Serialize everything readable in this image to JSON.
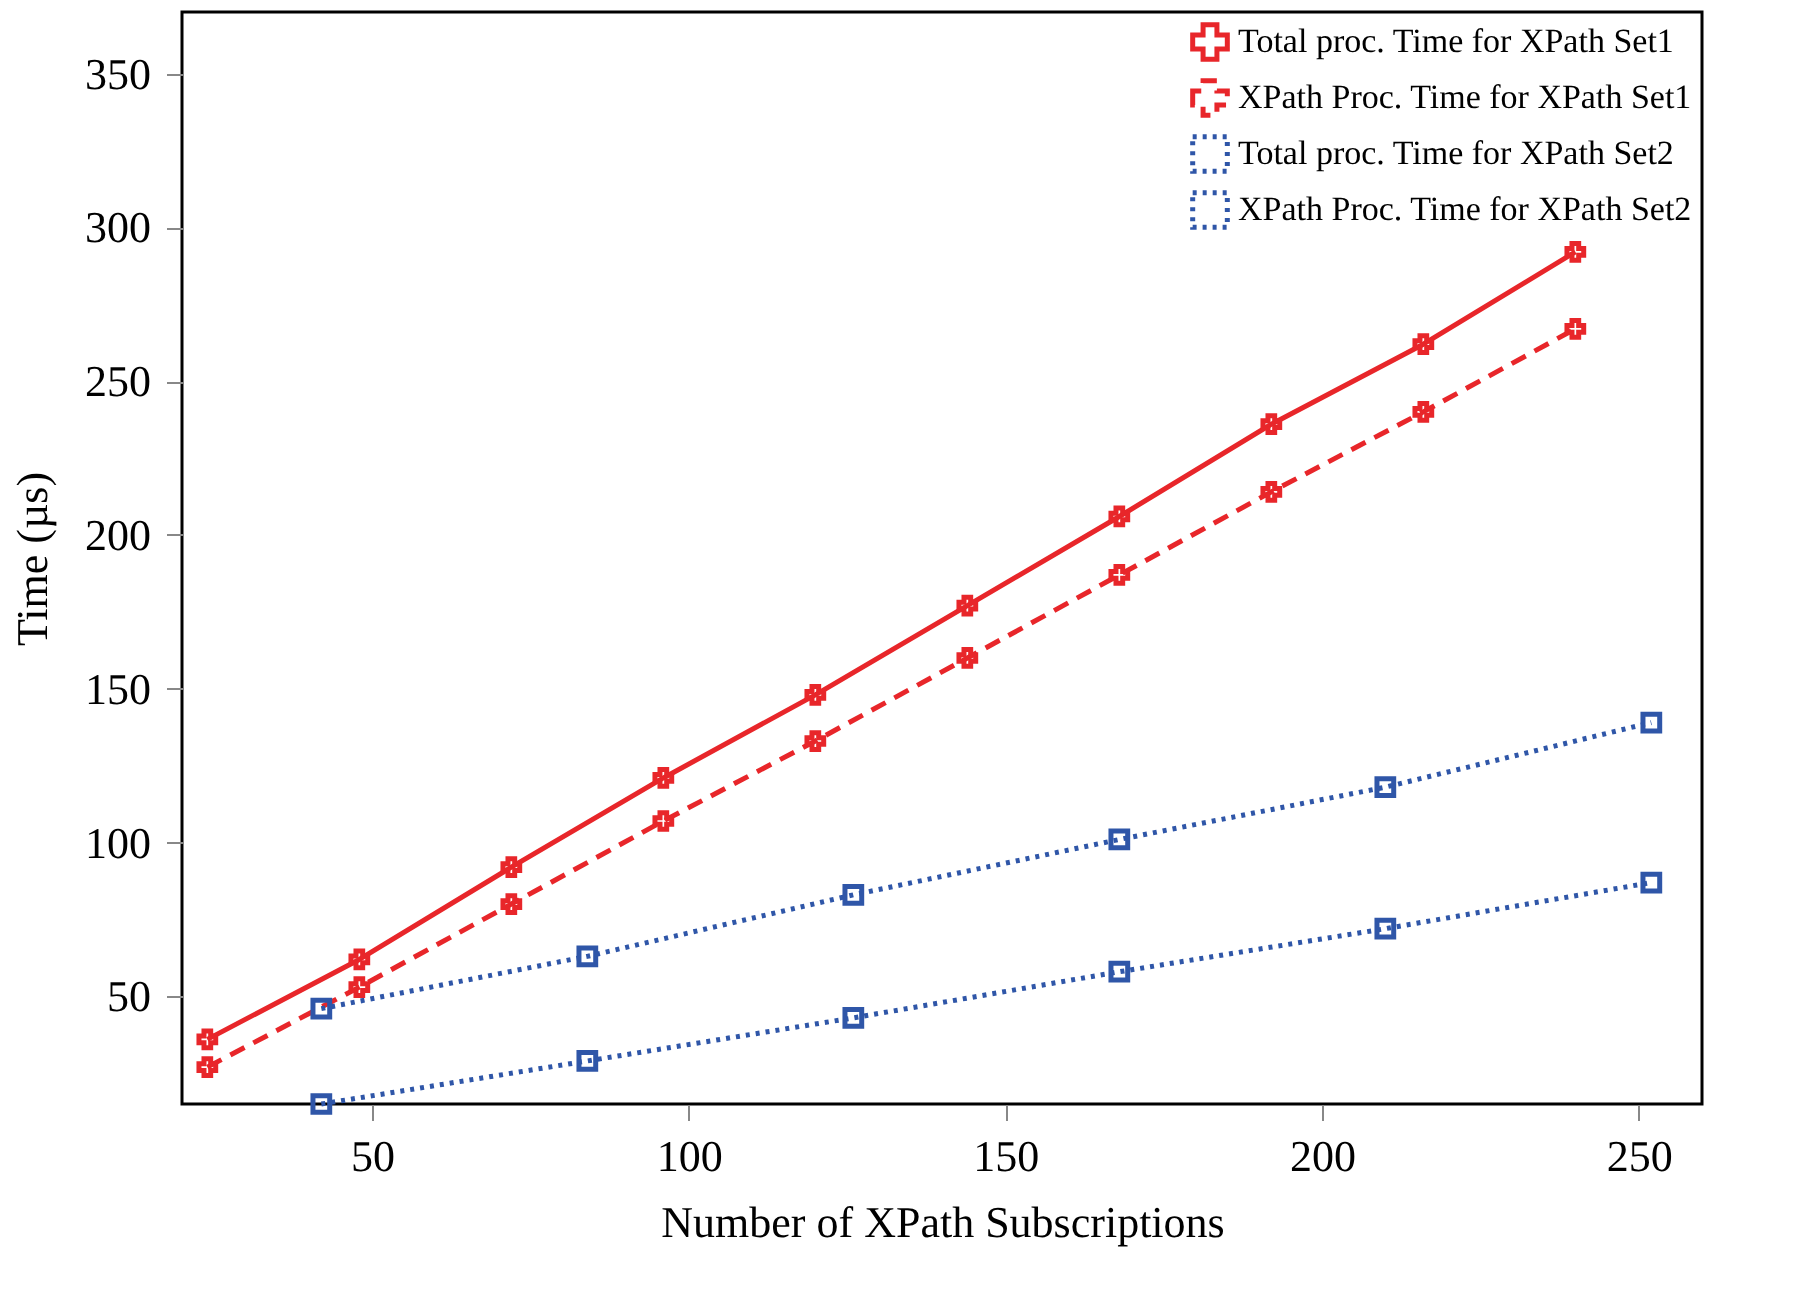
{
  "chart_data": {
    "type": "line",
    "xlabel": "Number of XPath Subscriptions",
    "ylabel": "Time (µs)",
    "xlim": [
      20,
      260
    ],
    "xticks": [
      50,
      100,
      150,
      200,
      250
    ],
    "ylim": [
      15,
      370
    ],
    "yticks": [
      50,
      100,
      150,
      200,
      250,
      300,
      350
    ],
    "grid": false,
    "legend": "top right",
    "series": [
      {
        "name": "Total proc. Time for XPath Set1",
        "color": "#e8262a",
        "line_style": "solid",
        "marker": "cross",
        "x": [
          24,
          48,
          72,
          96,
          120,
          144,
          168,
          192,
          216,
          240
        ],
        "values": [
          36,
          62,
          92,
          121,
          148,
          177,
          206,
          236,
          262,
          292
        ]
      },
      {
        "name": "XPath Proc. Time for XPath Set1",
        "color": "#e8262a",
        "line_style": "dashed",
        "marker": "cross",
        "x": [
          24,
          48,
          72,
          96,
          120,
          144,
          168,
          192,
          216,
          240
        ],
        "values": [
          27,
          53,
          80,
          107,
          133,
          160,
          187,
          214,
          240,
          267
        ]
      },
      {
        "name": "Total proc. Time for XPath Set2",
        "color": "#2f56a8",
        "line_style": "dotted",
        "marker": "square",
        "x": [
          42,
          84,
          126,
          168,
          210,
          252
        ],
        "values": [
          46,
          63,
          83,
          101,
          118,
          139
        ]
      },
      {
        "name": "XPath Proc. Time for XPath Set2",
        "color": "#2f56a8",
        "line_style": "dotted",
        "marker": "square",
        "x": [
          42,
          84,
          126,
          168,
          210,
          252
        ],
        "values": [
          15,
          29,
          43,
          58,
          72,
          87
        ]
      }
    ]
  }
}
